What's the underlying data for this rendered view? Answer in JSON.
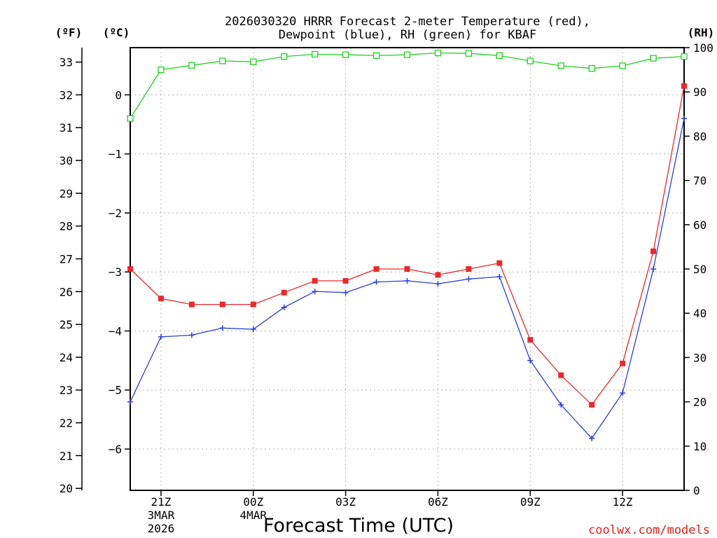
{
  "chart_data": {
    "type": "line",
    "title_line1": "2026030320 HRRR Forecast 2-meter Temperature (red),",
    "title_line2": "Dewpoint (blue), RH (green) for KBAF",
    "xlabel": "Forecast Time (UTC)",
    "credit": "coolwx.com/models",
    "left_outer_unit": "(ºF)",
    "left_inner_unit": "(ºC)",
    "right_unit": "(RH)",
    "xlim": [
      20,
      38
    ],
    "y_celsius_lim": [
      -6.7,
      0.8
    ],
    "y_rh_lim": [
      0,
      100
    ],
    "x_ticks": [
      {
        "x": 21,
        "label": "21Z",
        "sub1": "3MAR",
        "sub2": "2026"
      },
      {
        "x": 24,
        "label": "00Z",
        "sub1": "4MAR",
        "sub2": ""
      },
      {
        "x": 27,
        "label": "03Z",
        "sub1": "",
        "sub2": ""
      },
      {
        "x": 30,
        "label": "06Z",
        "sub1": "",
        "sub2": ""
      },
      {
        "x": 33,
        "label": "09Z",
        "sub1": "",
        "sub2": ""
      },
      {
        "x": 36,
        "label": "12Z",
        "sub1": "",
        "sub2": ""
      }
    ],
    "celsius_ticks": [
      "0",
      "−1",
      "−2",
      "−3",
      "−4",
      "−5",
      "−6"
    ],
    "celsius_tick_values": [
      0,
      -1,
      -2,
      -3,
      -4,
      -5,
      -6
    ],
    "fahrenheit_ticks": [
      "20",
      "21",
      "22",
      "23",
      "24",
      "25",
      "26",
      "27",
      "28",
      "29",
      "30",
      "31",
      "32",
      "33"
    ],
    "fahrenheit_tick_values": [
      20,
      21,
      22,
      23,
      24,
      25,
      26,
      27,
      28,
      29,
      30,
      31,
      32,
      33
    ],
    "rh_ticks": [
      "0",
      "10",
      "20",
      "30",
      "40",
      "50",
      "60",
      "70",
      "80",
      "90",
      "100"
    ],
    "rh_tick_values": [
      0,
      10,
      20,
      30,
      40,
      50,
      60,
      70,
      80,
      90,
      100
    ],
    "x": [
      20,
      21,
      22,
      23,
      24,
      25,
      26,
      27,
      28,
      29,
      30,
      31,
      32,
      33,
      34,
      35,
      36,
      37,
      38
    ],
    "series": [
      {
        "name": "Temperature",
        "unit": "C",
        "color": "#e8292c",
        "values": [
          -2.95,
          -3.45,
          -3.55,
          -3.55,
          -3.55,
          -3.35,
          -3.15,
          -3.15,
          -2.95,
          -2.95,
          -3.05,
          -2.95,
          -2.85,
          -4.15,
          -4.75,
          -5.25,
          -4.55,
          -2.65,
          0.15
        ]
      },
      {
        "name": "Dewpoint",
        "unit": "C",
        "color": "#2a3fd9",
        "values": [
          -5.2,
          -4.1,
          -4.07,
          -3.95,
          -3.97,
          -3.6,
          -3.33,
          -3.35,
          -3.17,
          -3.15,
          -3.2,
          -3.12,
          -3.08,
          -4.5,
          -5.25,
          -5.82,
          -5.05,
          -2.95,
          -0.4
        ]
      },
      {
        "name": "RH",
        "unit": "%",
        "color": "#1ed31e",
        "values": [
          84,
          95,
          96,
          97,
          96.8,
          98,
          98.5,
          98.4,
          98.2,
          98.4,
          98.8,
          98.7,
          98.2,
          97,
          95.9,
          95.3,
          95.9,
          97.6,
          98
        ]
      }
    ]
  }
}
